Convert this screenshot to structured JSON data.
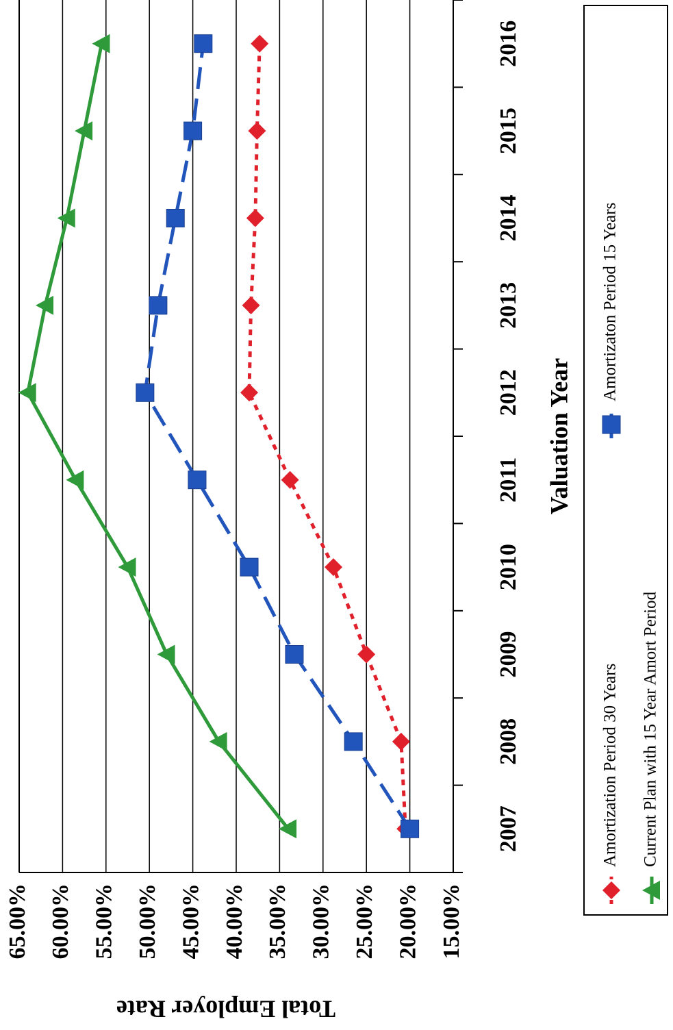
{
  "chart_data": {
    "type": "line",
    "orientation": "rotated-90-cw",
    "xlabel": "Valuation Year",
    "ylabel": "Total Employer Rate",
    "x": [
      "2007",
      "2008",
      "2009",
      "2010",
      "2011",
      "2012",
      "2013",
      "2014",
      "2015",
      "2016"
    ],
    "ylim": [
      15,
      65
    ],
    "yticks": [
      "15.00%",
      "20.00%",
      "25.00%",
      "30.00%",
      "35.00%",
      "40.00%",
      "45.00%",
      "50.00%",
      "55.00%",
      "60.00%",
      "65.00%"
    ],
    "grid": true,
    "legend_position": "bottom",
    "series": [
      {
        "name": "Amortization Period 30 Years",
        "color": "#e0202a",
        "marker": "diamond",
        "line_style": "dotted",
        "values": [
          20.5,
          21.0,
          25.0,
          28.8,
          33.8,
          38.5,
          38.3,
          37.8,
          37.6,
          37.3
        ]
      },
      {
        "name": "Amortizaton Period 15 Years",
        "color": "#2255bb",
        "marker": "square",
        "line_style": "dashed",
        "values": [
          20.0,
          26.5,
          33.3,
          38.5,
          44.5,
          50.5,
          49.0,
          47.0,
          45.0,
          43.8
        ]
      },
      {
        "name": "Current Plan with 15 Year Amort Period",
        "color": "#2e9a3a",
        "marker": "triangle",
        "line_style": "solid",
        "values": [
          34.0,
          42.0,
          48.0,
          52.5,
          58.5,
          64.0,
          62.0,
          59.5,
          57.5,
          55.5
        ]
      }
    ]
  }
}
